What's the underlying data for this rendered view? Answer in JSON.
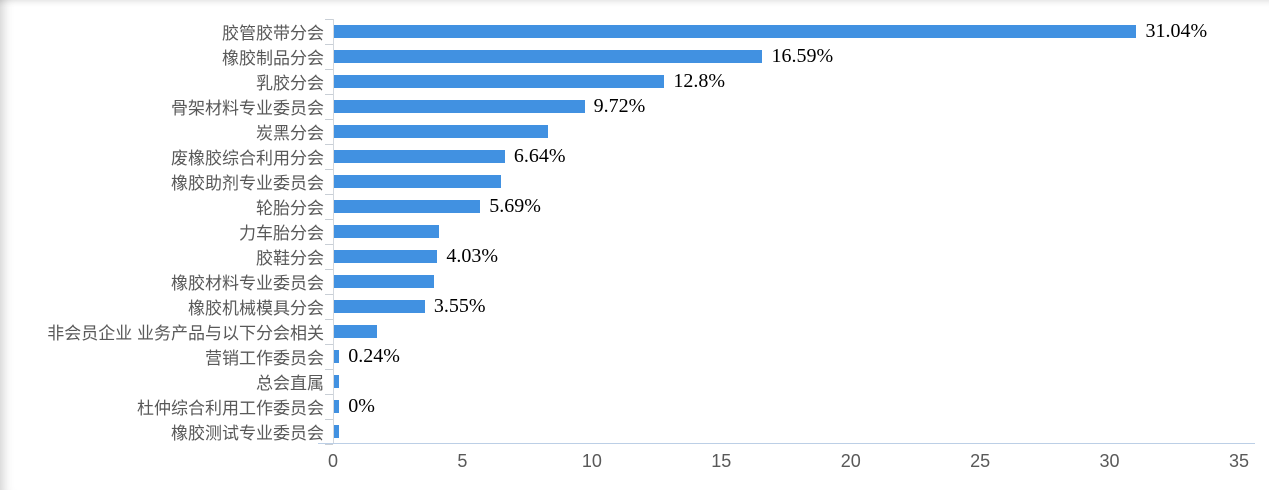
{
  "chart_data": {
    "type": "bar",
    "orientation": "horizontal",
    "title": "",
    "xlabel": "",
    "ylabel": "",
    "xlim": [
      0,
      35
    ],
    "x_ticks": [
      0,
      5,
      10,
      15,
      20,
      25,
      30,
      35
    ],
    "grid": false,
    "legend": false,
    "bar_color": "#4191e1",
    "axis_line_color": "#bccfe6",
    "category_label_color": "#595959",
    "value_label_color": "#000000",
    "categories": [
      "胶管胶带分会",
      "橡胶制品分会",
      "乳胶分会",
      "骨架材料专业委员会",
      "炭黑分会",
      "废橡胶综合利用分会",
      "橡胶助剂专业委员会",
      "轮胎分会",
      "力车胎分会",
      "胶鞋分会",
      "橡胶材料专业委员会",
      "橡胶机械模具分会",
      "非会员企业 业务产品与以下分会相关",
      "营销工作委员会",
      "总会直属",
      "杜仲综合利用工作委员会",
      "橡胶测试专业委员会"
    ],
    "values": [
      31.04,
      16.59,
      12.8,
      9.72,
      8.3,
      6.64,
      6.5,
      5.69,
      4.1,
      4.03,
      3.9,
      3.55,
      1.7,
      0.24,
      0.24,
      0.24,
      0.24
    ],
    "data_labels": [
      "31.04%",
      "16.59%",
      "12.8%",
      "9.72%",
      "",
      "6.64%",
      "",
      "5.69%",
      "",
      "4.03%",
      "",
      "3.55%",
      "",
      "0.24%",
      "",
      "0%",
      ""
    ]
  }
}
